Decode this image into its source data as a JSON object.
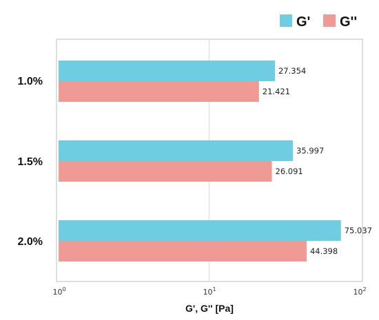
{
  "chart_data": {
    "type": "bar",
    "orientation": "horizontal",
    "xscale": "log",
    "xlim": [
      1,
      100
    ],
    "xlabel": "G', G'' [Pa]",
    "xticks": [
      {
        "base": "10",
        "exp": "0"
      },
      {
        "base": "10",
        "exp": "1"
      },
      {
        "base": "10",
        "exp": "2"
      }
    ],
    "categories": [
      "1.0%",
      "1.5%",
      "2.0%"
    ],
    "series": [
      {
        "name": "G'",
        "color": "#6ecde0",
        "values": [
          27.354,
          35.997,
          75.037
        ],
        "labels": [
          "27.354",
          "35.997",
          "75.037"
        ]
      },
      {
        "name": "G''",
        "color": "#f09a96",
        "values": [
          21.421,
          26.091,
          44.398
        ],
        "labels": [
          "21.421",
          "26.091",
          "44.398"
        ]
      }
    ],
    "legend_position": "top-right",
    "grid": "vertical-major"
  }
}
